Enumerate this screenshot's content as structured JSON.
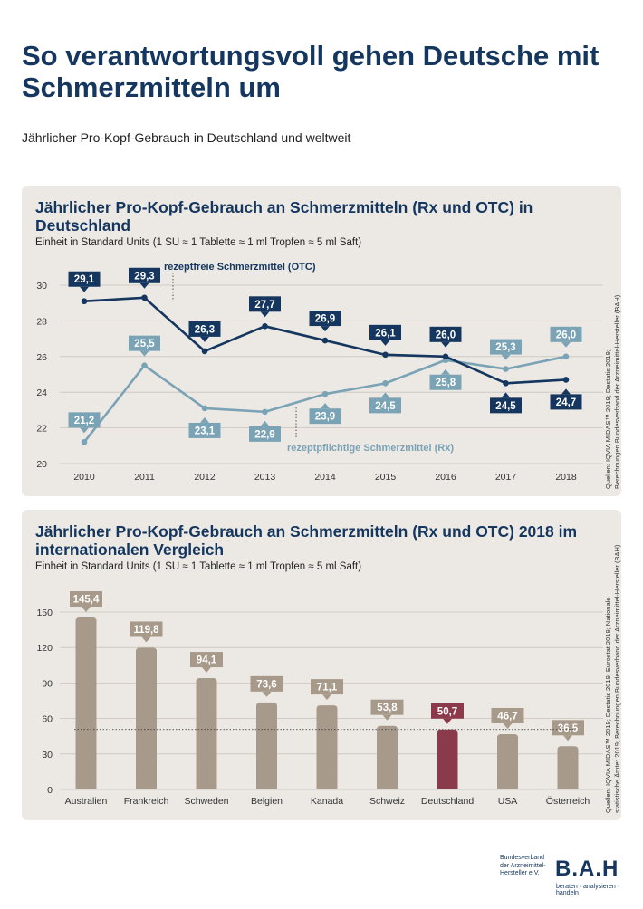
{
  "page": {
    "title": "So verantwortungsvoll gehen Deutsche mit Schmerzmitteln um",
    "subtitle": "Jährlicher Pro-Kopf-Gebrauch in Deutschland und weltweit"
  },
  "panel1": {
    "title": "Jährlicher Pro-Kopf-Gebrauch an Schmerzmitteln (Rx und OTC) in Deutschland",
    "unit": "Einheit in Standard Units (1 SU ≈ 1 Tablette ≈ 1 ml Tropfen ≈ 5 ml Saft)",
    "source": [
      "Quellen: IQVIA MIDAS™ 2019; Destatis 2019;",
      "Berechnungen Bundesverband der Arzneimittel-Hersteller (BAH)"
    ]
  },
  "panel2": {
    "title": "Jährlicher Pro-Kopf-Gebrauch an Schmerzmitteln (Rx und OTC) 2018 im internationalen Vergleich",
    "unit": "Einheit in Standard Units (1 SU ≈ 1 Tablette ≈ 1 ml Tropfen ≈ 5 ml Saft)",
    "source": [
      "Quellen: IQVIA MIDAS™ 2019; Destatis 2019; Eurostat 2019; Nationale",
      "statistische Ämter 2019; Berechnungen Bundesverband der Arzneimittel-Hersteller (BAH)"
    ]
  },
  "logo": {
    "text": [
      "Bundesverband",
      "der Arzneimittel-",
      "Hersteller e.V."
    ],
    "mark": "B.A.H",
    "tagline": "beraten · analysieren · handeln"
  },
  "colors": {
    "navy": "#14365f",
    "light_blue": "#7aa3b6",
    "bar_brown": "#a79a8a",
    "bar_highlight": "#8b3a4c",
    "panel_bg": "#ece9e4"
  },
  "chart_data": [
    {
      "type": "line",
      "x": [
        "2010",
        "2011",
        "2012",
        "2013",
        "2014",
        "2015",
        "2016",
        "2017",
        "2018"
      ],
      "ylim": [
        20,
        30
      ],
      "yticks": [
        20,
        22,
        24,
        26,
        28,
        30
      ],
      "grid": true,
      "series": [
        {
          "name": "rezeptfreie Schmerzmittel (OTC)",
          "values": [
            29.1,
            29.3,
            26.3,
            27.7,
            26.9,
            26.1,
            26.0,
            24.5,
            24.7
          ],
          "labels": [
            "29,1",
            "29,3",
            "26,3",
            "27,7",
            "26,9",
            "26,1",
            "26,0",
            "24,5",
            "24,7"
          ],
          "color": "#14365f"
        },
        {
          "name": "rezeptpflichtige Schmerzmittel (Rx)",
          "values": [
            21.2,
            25.5,
            23.1,
            22.9,
            23.9,
            24.5,
            25.8,
            25.3,
            26.0
          ],
          "labels": [
            "21,2",
            "25,5",
            "23,1",
            "22,9",
            "23,9",
            "24,5",
            "25,8",
            "25,3",
            "26,0"
          ],
          "color": "#7aa3b6"
        }
      ]
    },
    {
      "type": "bar",
      "categories": [
        "Australien",
        "Frankreich",
        "Schweden",
        "Belgien",
        "Kanada",
        "Schweiz",
        "Deutschland",
        "USA",
        "Österreich"
      ],
      "values": [
        145.4,
        119.8,
        94.1,
        73.6,
        71.1,
        53.8,
        50.7,
        46.7,
        36.5
      ],
      "labels": [
        "145,4",
        "119,8",
        "94,1",
        "73,6",
        "71,1",
        "53,8",
        "50,7",
        "46,7",
        "36,5"
      ],
      "highlight": "Deutschland",
      "reference_line": 50.7,
      "ylim": [
        0,
        150
      ],
      "yticks": [
        0,
        30,
        60,
        90,
        120,
        150
      ],
      "grid": true
    }
  ]
}
